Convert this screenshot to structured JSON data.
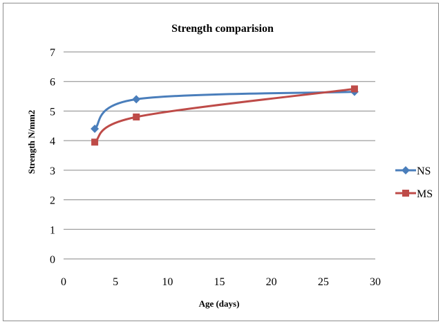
{
  "chart_data": {
    "type": "line",
    "title": "Strength comparision",
    "xlabel": "Age (days)",
    "ylabel": "Strength N/mm2",
    "xlim": [
      0,
      30
    ],
    "ylim": [
      0,
      7
    ],
    "x_ticks": [
      0,
      5,
      10,
      15,
      20,
      25,
      30
    ],
    "y_ticks": [
      0,
      1,
      2,
      3,
      4,
      5,
      6,
      7
    ],
    "grid": "horizontal",
    "legend_position": "right",
    "smooth": true,
    "series": [
      {
        "name": "NS",
        "color": "#4a7ebb",
        "marker": "diamond",
        "x": [
          3,
          7,
          28
        ],
        "y": [
          4.4,
          5.4,
          5.65
        ]
      },
      {
        "name": "MS",
        "color": "#be4b48",
        "marker": "square",
        "x": [
          3,
          7,
          28
        ],
        "y": [
          3.95,
          4.8,
          5.75
        ]
      }
    ]
  }
}
